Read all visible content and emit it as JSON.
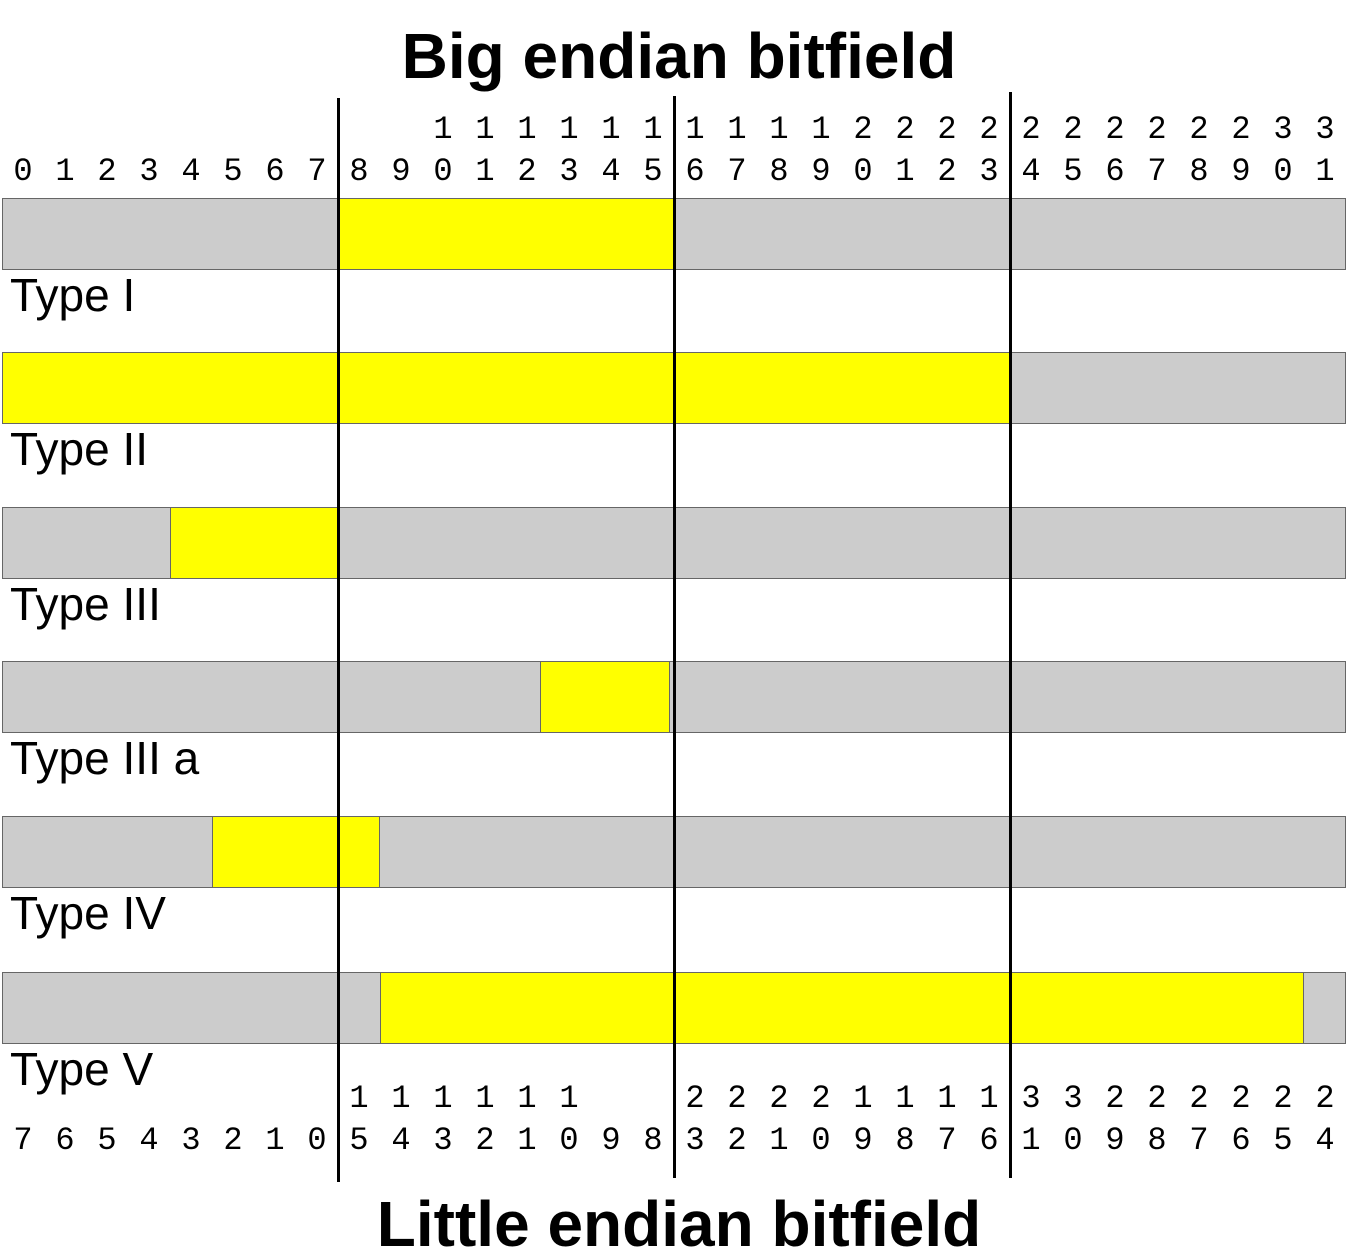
{
  "titles": {
    "big_endian": "Big endian bitfield",
    "little_endian": "Little endian bitfield"
  },
  "big_endian_bits": {
    "tens": [
      "",
      "",
      "",
      "",
      "",
      "",
      "",
      "",
      "",
      "",
      "1",
      "1",
      "1",
      "1",
      "1",
      "1",
      "1",
      "1",
      "1",
      "1",
      "2",
      "2",
      "2",
      "2",
      "2",
      "2",
      "2",
      "2",
      "2",
      "2",
      "3",
      "3"
    ],
    "ones": [
      "0",
      "1",
      "2",
      "3",
      "4",
      "5",
      "6",
      "7",
      "8",
      "9",
      "0",
      "1",
      "2",
      "3",
      "4",
      "5",
      "6",
      "7",
      "8",
      "9",
      "0",
      "1",
      "2",
      "3",
      "4",
      "5",
      "6",
      "7",
      "8",
      "9",
      "0",
      "1"
    ]
  },
  "little_endian_bits": {
    "tens": [
      "",
      "",
      "",
      "",
      "",
      "",
      "",
      "",
      "1",
      "1",
      "1",
      "1",
      "1",
      "1",
      "",
      "",
      "2",
      "2",
      "2",
      "2",
      "1",
      "1",
      "1",
      "1",
      "3",
      "3",
      "2",
      "2",
      "2",
      "2",
      "2",
      "2"
    ],
    "ones": [
      "7",
      "6",
      "5",
      "4",
      "3",
      "2",
      "1",
      "0",
      "5",
      "4",
      "3",
      "2",
      "1",
      "0",
      "9",
      "8",
      "3",
      "2",
      "1",
      "0",
      "9",
      "8",
      "7",
      "6",
      "1",
      "0",
      "9",
      "8",
      "7",
      "6",
      "5",
      "4"
    ]
  },
  "rows": [
    {
      "label": "Type I",
      "highlight_bits": [
        8,
        15
      ]
    },
    {
      "label": "Type II",
      "highlight_bits": [
        0,
        23
      ]
    },
    {
      "label": "Type III",
      "highlight_bits": [
        4,
        7
      ]
    },
    {
      "label": "Type III a",
      "highlight_bits": [
        12.8,
        14.9
      ]
    },
    {
      "label": "Type IV",
      "highlight_bits": [
        5,
        8
      ]
    },
    {
      "label": "Type V",
      "highlight_bits": [
        9,
        30
      ]
    }
  ],
  "colors": {
    "highlight": "#ffff00",
    "background_bits": "#cccccc",
    "divider": "#000000"
  }
}
